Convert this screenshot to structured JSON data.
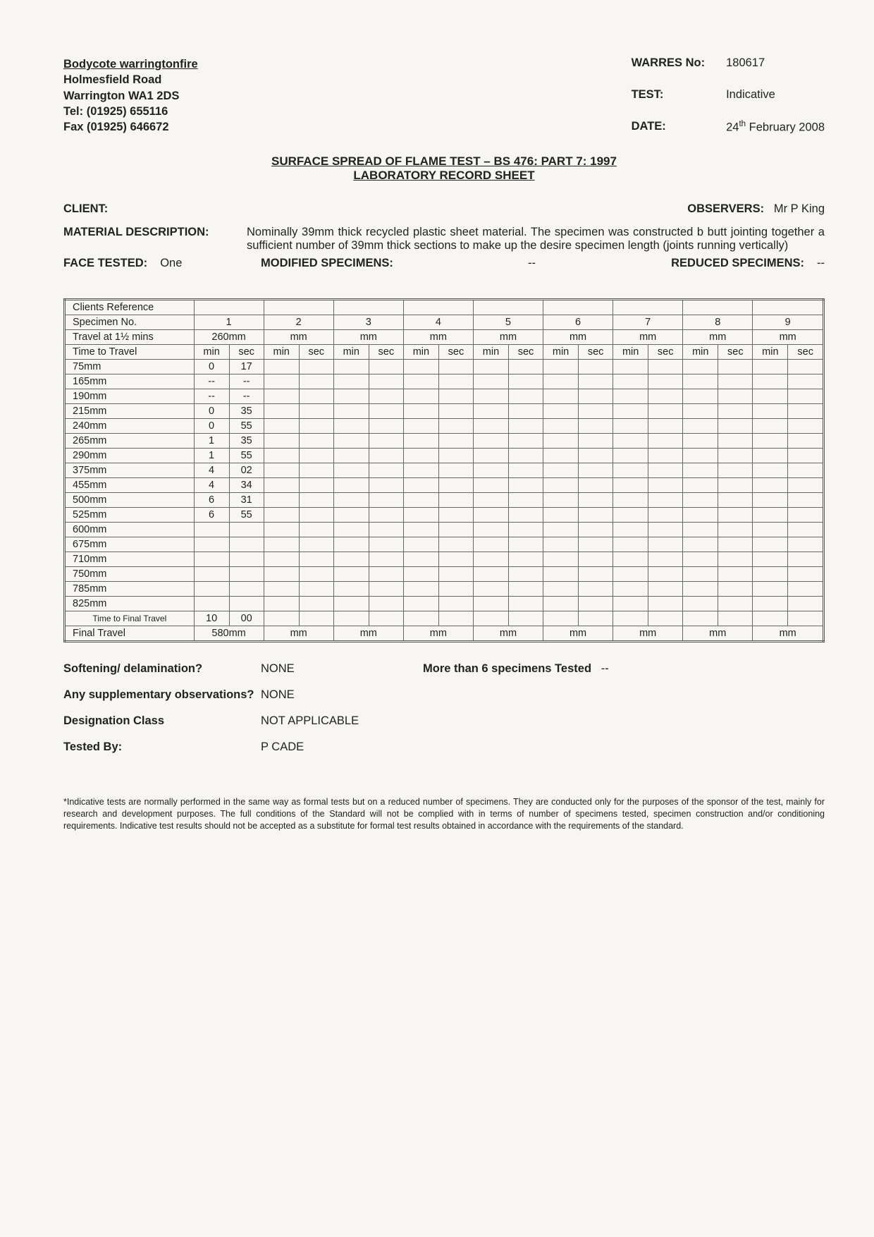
{
  "company": {
    "name": "Bodycote warringtonfire",
    "addr1": "Holmesfield Road",
    "addr2": "Warrington WA1 2DS",
    "tel": "Tel: (01925) 655116",
    "fax": "Fax (01925) 646672"
  },
  "meta": {
    "warres_label": "WARRES No:",
    "warres_value": "180617",
    "test_label": "TEST:",
    "test_value": "Indicative",
    "date_label": "DATE:",
    "date_value_prefix": "24",
    "date_value_sup": "th",
    "date_value_suffix": " February 2008"
  },
  "title1": "SURFACE SPREAD OF FLAME TEST – BS 476: PART 7: 1997",
  "title2": "LABORATORY RECORD SHEET",
  "client_label": "CLIENT:",
  "client_value": "",
  "observers_label": "OBSERVERS:",
  "observers_value": "Mr P King",
  "material_label": "MATERIAL DESCRIPTION:",
  "material_text": "Nominally 39mm thick recycled plastic sheet material. The specimen was constructed b butt jointing together a sufficient number of 39mm thick sections to make up the desire specimen length (joints running vertically)",
  "face_tested_label": "FACE TESTED:",
  "face_tested_value": "One",
  "mod_spec_label": "MODIFIED SPECIMENS:",
  "mod_spec_value": "--",
  "red_spec_label": "REDUCED SPECIMENS:",
  "red_spec_value": "--",
  "table": {
    "clients_ref_label": "Clients Reference",
    "specimen_no_label": "Specimen No.",
    "specimen_nos": [
      "1",
      "2",
      "3",
      "4",
      "5",
      "6",
      "7",
      "8",
      "9"
    ],
    "travel_label": "Travel at 1½ mins",
    "travel_vals": [
      "260mm",
      "mm",
      "mm",
      "mm",
      "mm",
      "mm",
      "mm",
      "mm",
      "mm"
    ],
    "time_to_travel_label": "Time to Travel",
    "minsec_hdr": [
      "min",
      "sec"
    ],
    "distances": [
      "75mm",
      "165mm",
      "190mm",
      "215mm",
      "240mm",
      "265mm",
      "290mm",
      "375mm",
      "455mm",
      "500mm",
      "525mm",
      "600mm",
      "675mm",
      "710mm",
      "750mm",
      "785mm",
      "825mm"
    ],
    "spec1_times": [
      [
        "0",
        "17"
      ],
      [
        "--",
        "--"
      ],
      [
        "--",
        "--"
      ],
      [
        "0",
        "35"
      ],
      [
        "0",
        "55"
      ],
      [
        "1",
        "35"
      ],
      [
        "1",
        "55"
      ],
      [
        "4",
        "02"
      ],
      [
        "4",
        "34"
      ],
      [
        "6",
        "31"
      ],
      [
        "6",
        "55"
      ],
      [
        "",
        ""
      ],
      [
        "",
        ""
      ],
      [
        "",
        ""
      ],
      [
        "",
        ""
      ],
      [
        "",
        ""
      ],
      [
        "",
        ""
      ]
    ],
    "time_final_label": "Time to Final Travel",
    "time_final_spec1": [
      "10",
      "00"
    ],
    "final_travel_label": "Final Travel",
    "final_travel_vals": [
      "580mm",
      "mm",
      "mm",
      "mm",
      "mm",
      "mm",
      "mm",
      "mm",
      "mm"
    ]
  },
  "bottom": {
    "soft_label": "Softening/ delamination?",
    "soft_val": "NONE",
    "more6_label": "More than 6 specimens Tested",
    "more6_val": "--",
    "supp_label": "Any supplementary observations?",
    "supp_val": "NONE",
    "class_label": "Designation Class",
    "class_val": "NOT APPLICABLE",
    "tested_label": "Tested By:",
    "tested_val": "P CADE"
  },
  "footnote": "*Indicative tests are normally performed in the same way as formal tests but on a reduced number of specimens. They are conducted only for the purposes of the sponsor of the test, mainly for research and development purposes. The full conditions of the Standard will not be complied with in terms of number of specimens tested, specimen construction and/or conditioning requirements. Indicative test results should not be accepted as a substitute for formal test results obtained in accordance with the requirements of the standard."
}
